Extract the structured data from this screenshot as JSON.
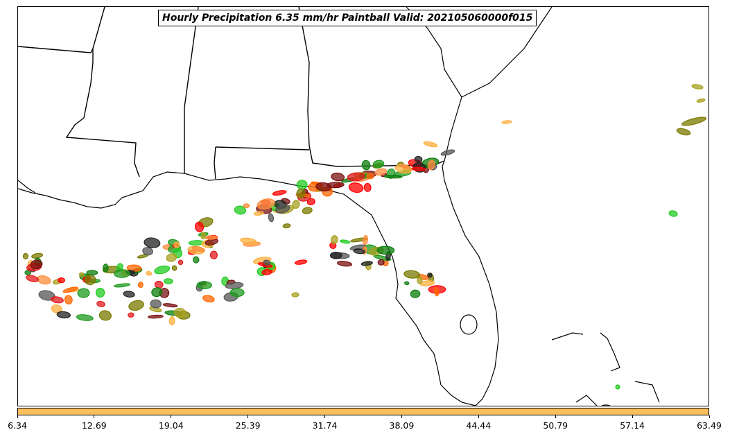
{
  "title": "Hourly Precipitation 6.35 mm/hr Paintball Valid: 202105060000f015",
  "colorbar": {
    "color": "#fcbf5e",
    "tick_labels": [
      "6.34",
      "12.69",
      "19.04",
      "25.39",
      "31.74",
      "38.09",
      "44.44",
      "50.79",
      "57.14",
      "63.49"
    ]
  },
  "member_colors": [
    "#ff0000",
    "#e31a1c",
    "#ff6600",
    "#fd8d3c",
    "#fcb040",
    "#0b7d0b",
    "#1f9a1f",
    "#22cc22",
    "#7a7a00",
    "#a8a020",
    "#7a1010",
    "#222222",
    "#555555"
  ]
}
